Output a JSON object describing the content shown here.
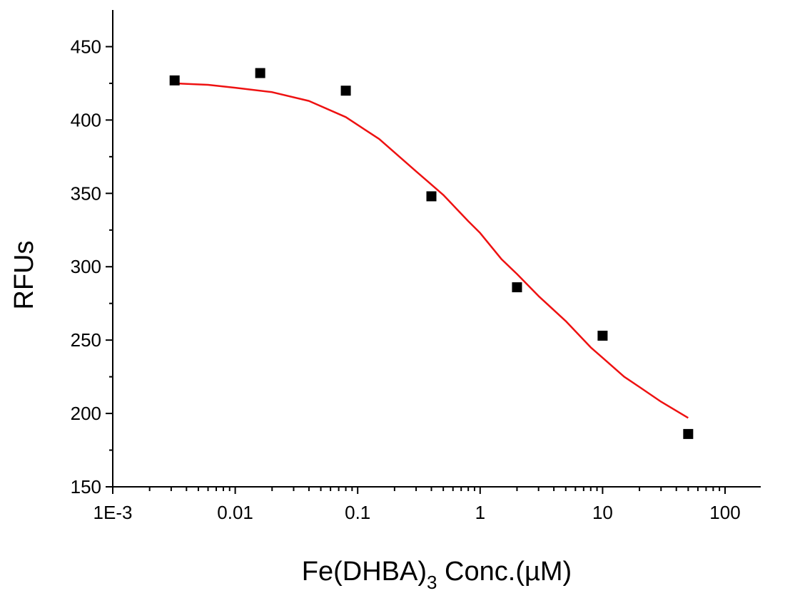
{
  "chart_data": {
    "type": "scatter",
    "title": "",
    "xlabel": {
      "main": "Fe(DHBA)",
      "subscript": "3",
      "suffix": " Conc.(µM)"
    },
    "ylabel": "RFUs",
    "x_scale": "log",
    "xlim": [
      0.001,
      150
    ],
    "ylim": [
      150,
      475
    ],
    "x_ticks": [
      0.001,
      0.01,
      0.1,
      1,
      10,
      100
    ],
    "x_tick_labels": [
      "1E-3",
      "0.01",
      "0.1",
      "1",
      "10",
      "100"
    ],
    "y_ticks": [
      150,
      200,
      250,
      300,
      350,
      400,
      450
    ],
    "y_tick_labels": [
      "150",
      "200",
      "250",
      "300",
      "350",
      "400",
      "450"
    ],
    "grid": false,
    "legend": "none",
    "series": [
      {
        "kind": "points",
        "marker": "square",
        "color": "#000000",
        "x": [
          0.0032,
          0.016,
          0.08,
          0.4,
          2,
          10,
          50
        ],
        "y": [
          427,
          432,
          420,
          348,
          286,
          253,
          186
        ]
      },
      {
        "kind": "fit-curve",
        "color": "#ee1111",
        "x": [
          0.0032,
          0.006,
          0.01,
          0.02,
          0.04,
          0.08,
          0.15,
          0.3,
          0.5,
          0.8,
          1,
          1.5,
          2,
          3,
          5,
          8,
          10,
          15,
          20,
          30,
          50
        ],
        "y": [
          425,
          424,
          422,
          419,
          413,
          402,
          387,
          365,
          349,
          331,
          323,
          305,
          295,
          280,
          263,
          245,
          238,
          225,
          218,
          208,
          197
        ]
      }
    ]
  }
}
